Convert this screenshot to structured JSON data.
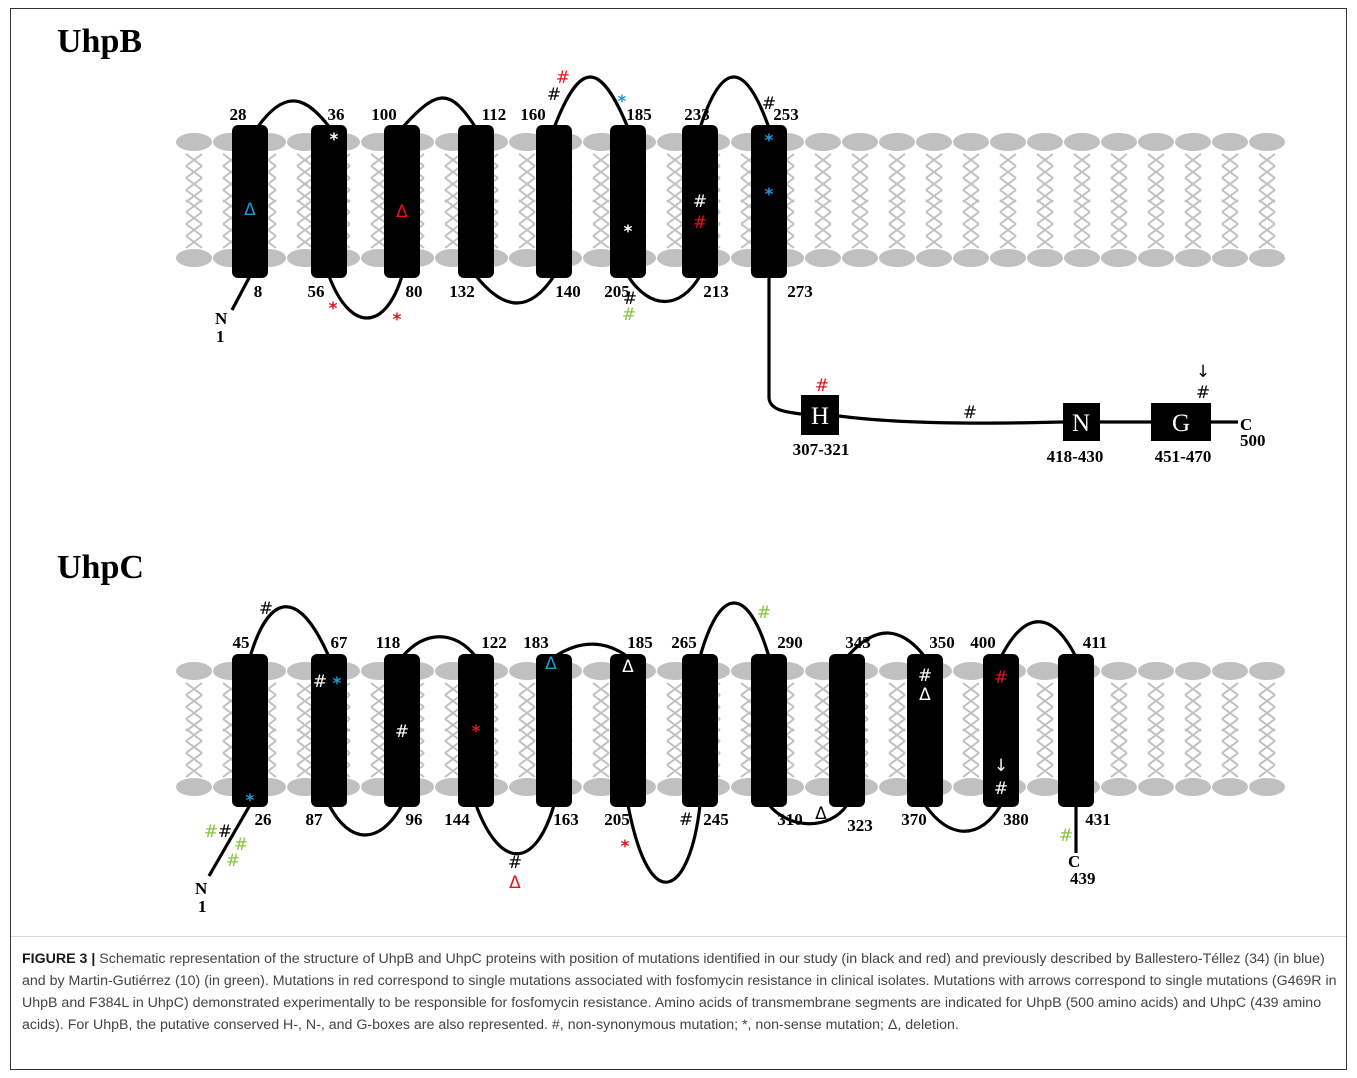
{
  "colors": {
    "black": "#000000",
    "white": "#ffffff",
    "red": "#e8101a",
    "blue": "#1e9ad6",
    "green": "#86c440",
    "membrane": "#c0c0c0"
  },
  "uhpb": {
    "title": "UhpB",
    "n_term": "N",
    "n_num": "1",
    "c_term": "C",
    "c_num": "500",
    "top_labels": [
      "28",
      "36",
      "100",
      "112",
      "160",
      "185",
      "233",
      "253"
    ],
    "bottom_labels": [
      "8",
      "56",
      "80",
      "132",
      "140",
      "205",
      "213",
      "273"
    ],
    "boxes": [
      {
        "letter": "H",
        "range": "307-321"
      },
      {
        "letter": "N",
        "range": "418-430"
      },
      {
        "letter": "G",
        "range": "451-470"
      }
    ],
    "marks": [
      {
        "sym": "Δ",
        "color": "blue"
      },
      {
        "sym": "*",
        "color": "white"
      },
      {
        "sym": "Δ",
        "color": "red"
      },
      {
        "sym": "#",
        "color": "red"
      },
      {
        "sym": "#",
        "color": "black"
      },
      {
        "sym": "*",
        "color": "blue"
      },
      {
        "sym": "*",
        "color": "white"
      },
      {
        "sym": "#",
        "color": "white"
      },
      {
        "sym": "#",
        "color": "red"
      },
      {
        "sym": "#",
        "color": "black"
      },
      {
        "sym": "*",
        "color": "blue"
      },
      {
        "sym": "*",
        "color": "blue"
      },
      {
        "sym": "*",
        "color": "red"
      },
      {
        "sym": "*",
        "color": "red"
      },
      {
        "sym": "#",
        "color": "black"
      },
      {
        "sym": "#",
        "color": "green"
      },
      {
        "sym": "#",
        "color": "red"
      },
      {
        "sym": "#",
        "color": "black"
      },
      {
        "sym": "#",
        "color": "black"
      },
      {
        "sym": "↓",
        "color": "black"
      }
    ]
  },
  "uhpc": {
    "title": "UhpC",
    "n_term": "N",
    "n_num": "1",
    "c_term": "C",
    "c_num": "439",
    "top_labels": [
      "45",
      "67",
      "118",
      "122",
      "183",
      "185",
      "265",
      "290",
      "343",
      "350",
      "400",
      "411"
    ],
    "bottom_labels": [
      "26",
      "87",
      "96",
      "144",
      "163",
      "205",
      "245",
      "310",
      "323",
      "370",
      "380",
      "431"
    ],
    "marks": [
      {
        "sym": "#",
        "color": "black"
      },
      {
        "sym": "#",
        "color": "white"
      },
      {
        "sym": "*",
        "color": "blue"
      },
      {
        "sym": "#",
        "color": "white"
      },
      {
        "sym": "*",
        "color": "red"
      },
      {
        "sym": "Δ",
        "color": "blue"
      },
      {
        "sym": "Δ",
        "color": "white"
      },
      {
        "sym": "#",
        "color": "green"
      },
      {
        "sym": "#",
        "color": "white"
      },
      {
        "sym": "Δ",
        "color": "white"
      },
      {
        "sym": "#",
        "color": "red"
      },
      {
        "sym": "↓",
        "color": "white"
      },
      {
        "sym": "#",
        "color": "white"
      },
      {
        "sym": "*",
        "color": "blue"
      },
      {
        "sym": "#",
        "color": "green"
      },
      {
        "sym": "#",
        "color": "black"
      },
      {
        "sym": "#",
        "color": "green"
      },
      {
        "sym": "#",
        "color": "green"
      },
      {
        "sym": "#",
        "color": "black"
      },
      {
        "sym": "Δ",
        "color": "red"
      },
      {
        "sym": "*",
        "color": "red"
      },
      {
        "sym": "#",
        "color": "black"
      },
      {
        "sym": "Δ",
        "color": "black"
      },
      {
        "sym": "#",
        "color": "green"
      }
    ]
  },
  "caption": {
    "label": "FIGURE 3 |",
    "text": "Schematic representation of the structure of UhpB and UhpC proteins with position of mutations identified in our study (in black and red) and previously described by Ballestero-Téllez (34) (in blue) and by Martin-Gutiérrez (10) (in green). Mutations in red correspond to single mutations associated with fosfomycin resistance in clinical isolates. Mutations with arrows correspond to single mutations (G469R in UhpB and F384L in UhpC) demonstrated experimentally to be responsible for fosfomycin resistance. Amino acids of transmembrane segments are indicated for UhpB (500 amino acids) and UhpC (439 amino acids). For UhpB, the putative conserved H-, N-, and G-boxes are also represented. #, non-synonymous mutation; *, non-sense mutation; Δ, deletion."
  }
}
